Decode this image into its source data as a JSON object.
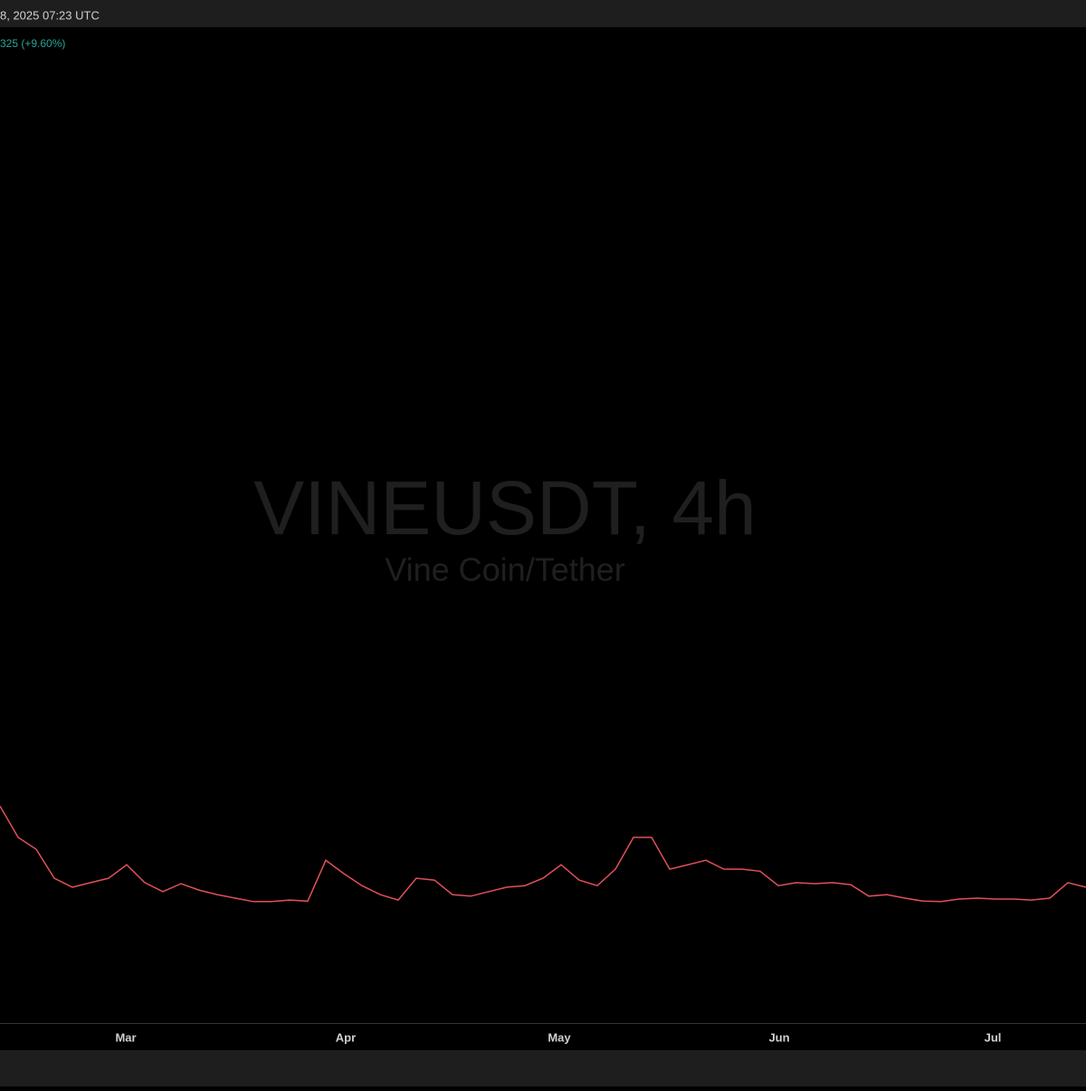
{
  "header": {
    "timestamp": "8, 2025 07:23 UTC"
  },
  "legend": {
    "change": "325 (+9.60%)"
  },
  "watermark": {
    "title": "VINEUSDT, 4h",
    "subtitle": "Vine Coin/Tether"
  },
  "chart_data": {
    "type": "line",
    "color": "#e0505a",
    "x_labels": [
      "Mar",
      "Apr",
      "May",
      "Jun",
      "Jul"
    ],
    "ylim": [
      0,
      0.2
    ],
    "values": [
      0.0436,
      0.0373,
      0.0349,
      0.0291,
      0.0273,
      0.0282,
      0.0291,
      0.0318,
      0.0282,
      0.0264,
      0.028,
      0.0267,
      0.0258,
      0.0251,
      0.0244,
      0.0244,
      0.0247,
      0.0245,
      0.0327,
      0.03,
      0.0276,
      0.0258,
      0.0247,
      0.0291,
      0.0287,
      0.0258,
      0.0255,
      0.0264,
      0.0273,
      0.0276,
      0.0291,
      0.0318,
      0.0287,
      0.0276,
      0.0309,
      0.0373,
      0.0373,
      0.0309,
      0.0318,
      0.0327,
      0.0309,
      0.0309,
      0.0305,
      0.0276,
      0.0282,
      0.028,
      0.0282,
      0.0278,
      0.0255,
      0.0258,
      0.0251,
      0.0245,
      0.0244,
      0.0249,
      0.0251,
      0.0249,
      0.0249,
      0.0247,
      0.0251,
      0.0282,
      0.0273
    ]
  }
}
